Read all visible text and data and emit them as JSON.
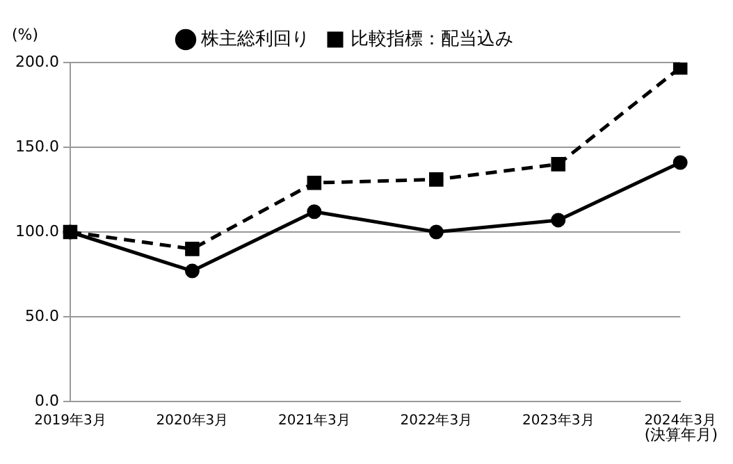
{
  "chart_data": {
    "type": "line",
    "ylabel": "(%)",
    "xlabel": "(決算年月)",
    "categories": [
      "2019年3月",
      "2020年3月",
      "2021年3月",
      "2022年3月",
      "2023年3月",
      "2024年3月"
    ],
    "series": [
      {
        "name": "株主総利回り",
        "color": "#000000",
        "marker": "circle",
        "line_style": "solid",
        "values": [
          100,
          77,
          112,
          100,
          107,
          141
        ]
      },
      {
        "name": "比較指標：配当込み",
        "color": "#000000",
        "marker": "square",
        "line_style": "dashed",
        "values": [
          100,
          90,
          129,
          131,
          140,
          197
        ]
      }
    ],
    "ylim": [
      0,
      200
    ],
    "yticks": [
      {
        "value": 0,
        "label": "0.0"
      },
      {
        "value": 50,
        "label": "50.0"
      },
      {
        "value": 100,
        "label": "100.0"
      },
      {
        "value": 150,
        "label": "150.0"
      },
      {
        "value": 200,
        "label": "200.0"
      }
    ],
    "grid": "y",
    "legend": "top"
  }
}
